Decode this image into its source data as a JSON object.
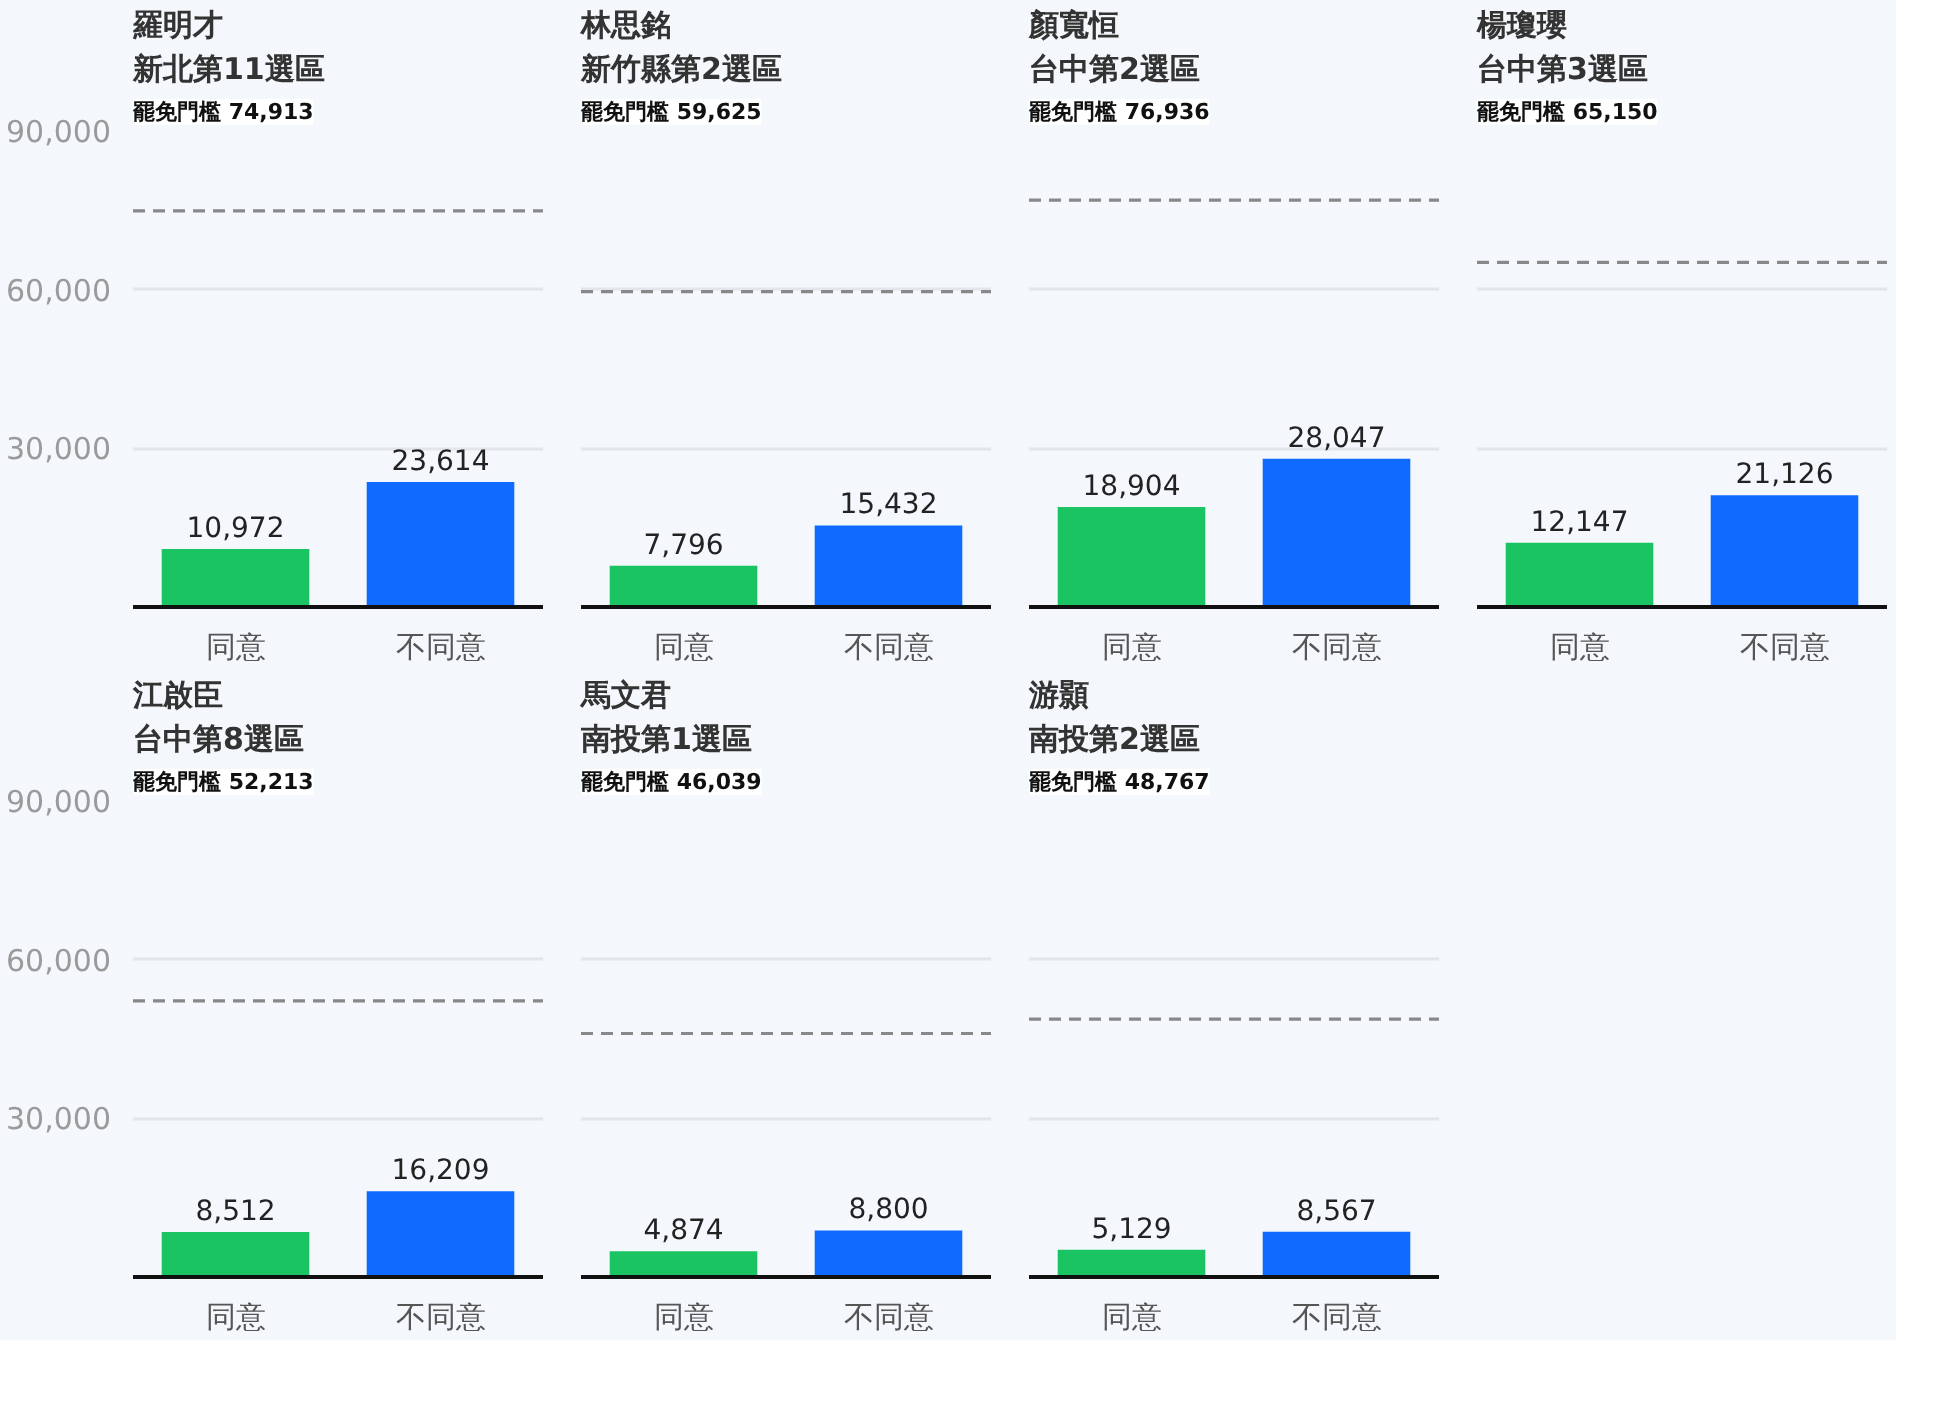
{
  "chart_data": [
    {
      "type": "bar",
      "title": "羅明才",
      "subtitle": "新北第11選區",
      "annotations": [
        "罷免門檻 74,913"
      ],
      "categories": [
        "同意",
        "不同意"
      ],
      "values": [
        10972,
        23614
      ],
      "value_labels": [
        "10,972",
        "23,614"
      ],
      "colors": [
        "#1bc463",
        "#0f6bff"
      ],
      "ylim": [
        0,
        90000
      ],
      "yticks": [
        {
          "value": 30000,
          "label": "30,000"
        },
        {
          "value": 60000,
          "label": "60,000"
        },
        {
          "value": 90000,
          "label": "90,000"
        }
      ],
      "grid": "y",
      "ref_lines": [
        {
          "axis": "y",
          "value": 74913,
          "color": "#888888",
          "line_style": "dashed"
        }
      ]
    },
    {
      "type": "bar",
      "title": "林思銘",
      "subtitle": "新竹縣第2選區",
      "annotations": [
        "罷免門檻 59,625"
      ],
      "categories": [
        "同意",
        "不同意"
      ],
      "values": [
        7796,
        15432
      ],
      "value_labels": [
        "7,796",
        "15,432"
      ],
      "colors": [
        "#1bc463",
        "#0f6bff"
      ],
      "ylim": [
        0,
        90000
      ],
      "yticks": [
        30000,
        60000,
        90000
      ],
      "grid": "y",
      "tick_labels": "x",
      "ref_lines": [
        {
          "axis": "y",
          "value": 59625,
          "color": "#888888",
          "line_style": "dashed"
        }
      ]
    },
    {
      "type": "bar",
      "title": "顏寬恒",
      "subtitle": "台中第2選區",
      "annotations": [
        "罷免門檻 76,936"
      ],
      "categories": [
        "同意",
        "不同意"
      ],
      "values": [
        18904,
        28047
      ],
      "value_labels": [
        "18,904",
        "28,047"
      ],
      "colors": [
        "#1bc463",
        "#0f6bff"
      ],
      "ylim": [
        0,
        90000
      ],
      "yticks": [
        30000,
        60000,
        90000
      ],
      "grid": "y",
      "tick_labels": "x",
      "ref_lines": [
        {
          "axis": "y",
          "value": 76936,
          "color": "#888888",
          "line_style": "dashed"
        }
      ]
    },
    {
      "type": "bar",
      "title": "楊瓊瓔",
      "subtitle": "台中第3選區",
      "annotations": [
        "罷免門檻 65,150"
      ],
      "categories": [
        "同意",
        "不同意"
      ],
      "values": [
        12147,
        21126
      ],
      "value_labels": [
        "12,147",
        "21,126"
      ],
      "colors": [
        "#1bc463",
        "#0f6bff"
      ],
      "ylim": [
        0,
        90000
      ],
      "yticks": [
        30000,
        60000,
        90000
      ],
      "grid": "y",
      "tick_labels": "x",
      "ref_lines": [
        {
          "axis": "y",
          "value": 65150,
          "color": "#888888",
          "line_style": "dashed"
        }
      ]
    },
    {
      "type": "bar",
      "title": "江啟臣",
      "subtitle": "台中第8選區",
      "annotations": [
        "罷免門檻 52,213"
      ],
      "categories": [
        "同意",
        "不同意"
      ],
      "values": [
        8512,
        16209
      ],
      "value_labels": [
        "8,512",
        "16,209"
      ],
      "colors": [
        "#1bc463",
        "#0f6bff"
      ],
      "ylim": [
        0,
        90000
      ],
      "yticks": [
        {
          "value": 30000,
          "label": "30,000"
        },
        {
          "value": 60000,
          "label": "60,000"
        },
        {
          "value": 90000,
          "label": "90,000"
        }
      ],
      "grid": "y",
      "ref_lines": [
        {
          "axis": "y",
          "value": 52213,
          "color": "#888888",
          "line_style": "dashed"
        }
      ]
    },
    {
      "type": "bar",
      "title": "馬文君",
      "subtitle": "南投第1選區",
      "annotations": [
        "罷免門檻 46,039"
      ],
      "categories": [
        "同意",
        "不同意"
      ],
      "values": [
        4874,
        8800
      ],
      "value_labels": [
        "4,874",
        "8,800"
      ],
      "colors": [
        "#1bc463",
        "#0f6bff"
      ],
      "ylim": [
        0,
        90000
      ],
      "yticks": [
        30000,
        60000,
        90000
      ],
      "grid": "y",
      "tick_labels": "x",
      "ref_lines": [
        {
          "axis": "y",
          "value": 46039,
          "color": "#888888",
          "line_style": "dashed"
        }
      ]
    },
    {
      "type": "bar",
      "title": "游顥",
      "subtitle": "南投第2選區",
      "annotations": [
        "罷免門檻 48,767"
      ],
      "categories": [
        "同意",
        "不同意"
      ],
      "values": [
        5129,
        8567
      ],
      "value_labels": [
        "5,129",
        "8,567"
      ],
      "colors": [
        "#1bc463",
        "#0f6bff"
      ],
      "ylim": [
        0,
        90000
      ],
      "yticks": [
        30000,
        60000,
        90000
      ],
      "grid": "y",
      "tick_labels": "x",
      "ref_lines": [
        {
          "axis": "y",
          "value": 48767,
          "color": "#888888",
          "line_style": "dashed"
        }
      ]
    }
  ]
}
